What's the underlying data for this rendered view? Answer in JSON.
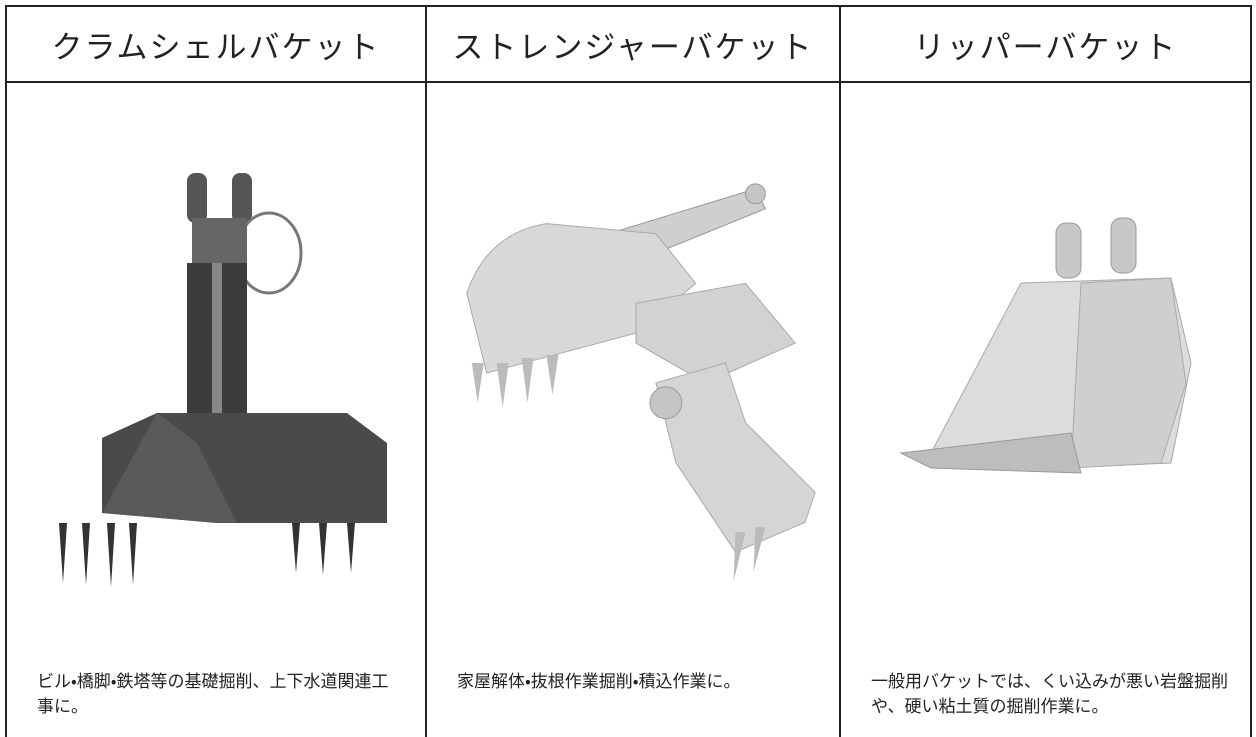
{
  "columns": [
    {
      "title": "クラムシェルバケット",
      "description": "ビル・橋脚・鉄塔等の基礎掘削、上下水道関連工事に。"
    },
    {
      "title": "ストレンジャーバケット",
      "description": "家屋解体・抜根作業掘削・積込作業に。"
    },
    {
      "title": "リッパーバケット",
      "description": "一般用バケットでは、くい込みが悪い岩盤掘削や、硬い粘土質の掘削作業に。"
    }
  ]
}
